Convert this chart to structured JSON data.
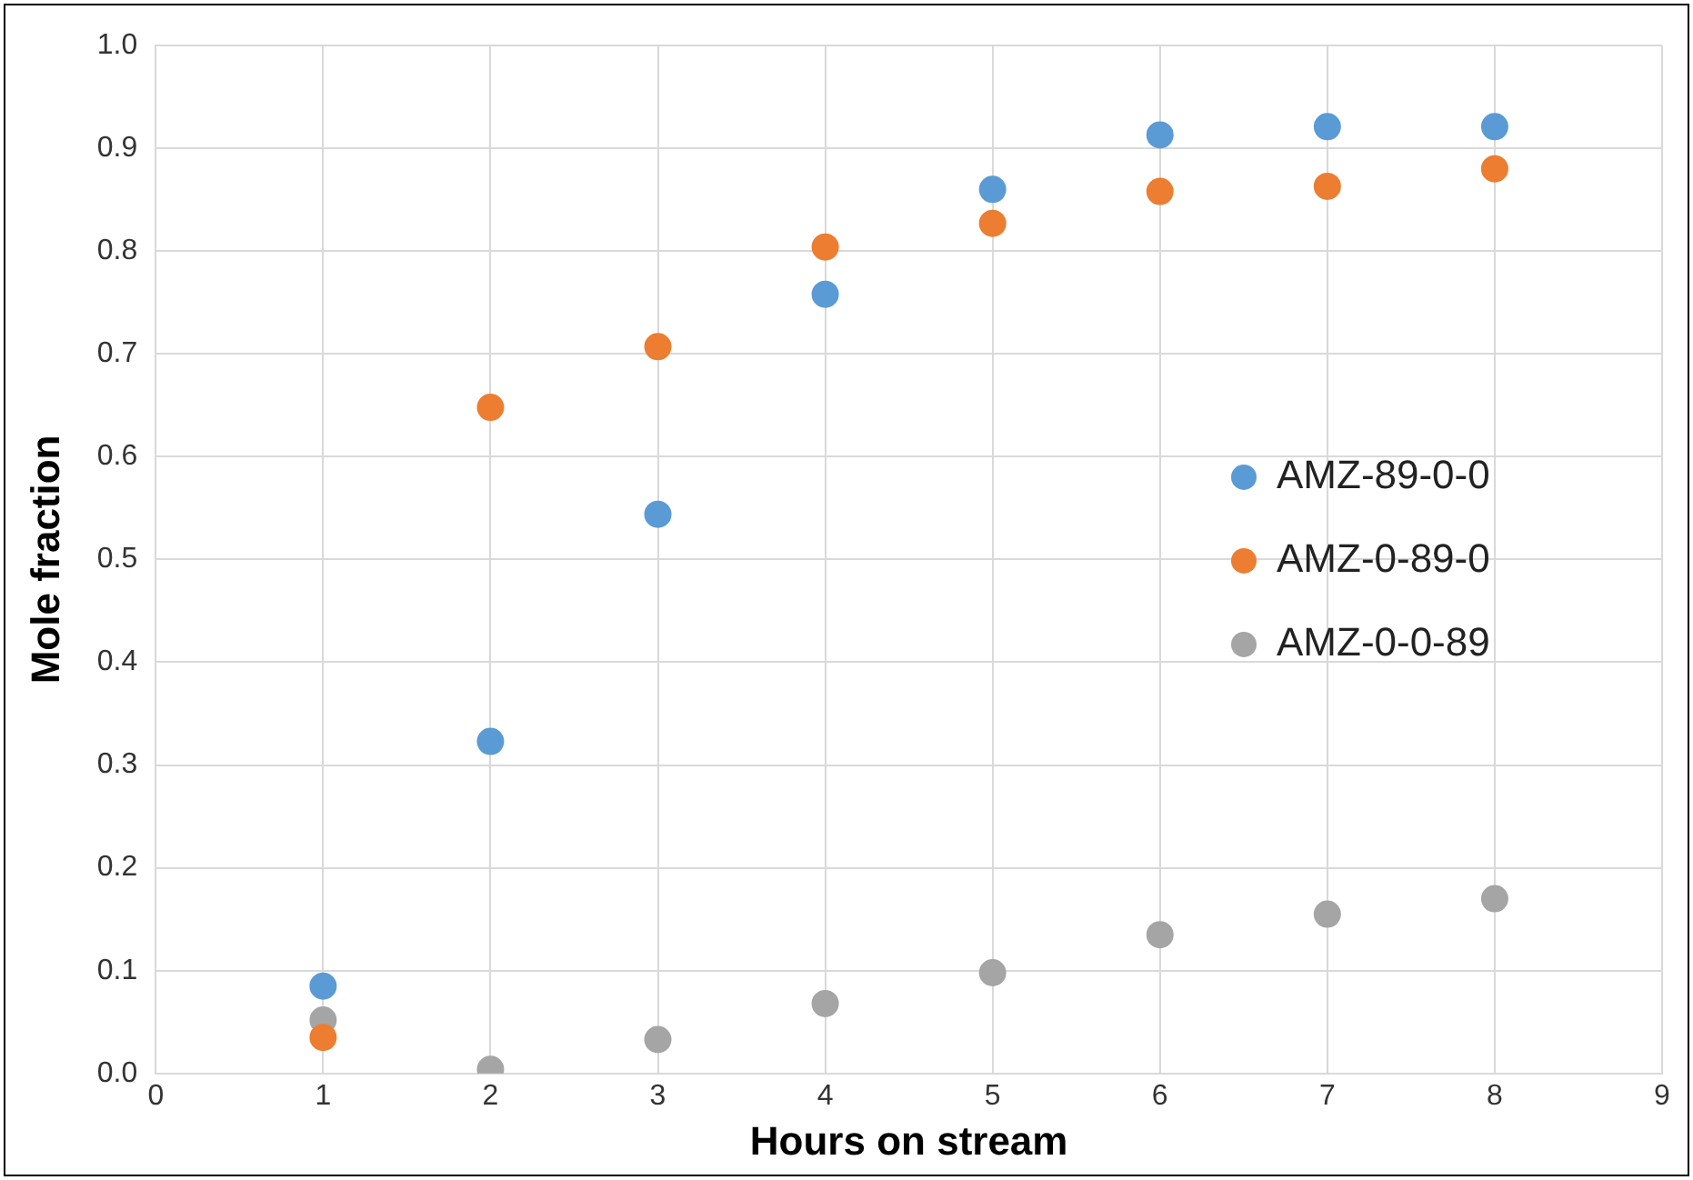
{
  "chart_data": {
    "type": "scatter",
    "xlabel": "Hours on stream",
    "ylabel": "Mole fraction",
    "x": [
      1,
      2,
      3,
      4,
      5,
      6,
      7,
      8
    ],
    "series": [
      {
        "name": "AMZ-89-0-0",
        "color": "#5b9bd5",
        "values": [
          0.085,
          0.323,
          0.544,
          0.758,
          0.86,
          0.913,
          0.921,
          0.921
        ]
      },
      {
        "name": "AMZ-0-89-0",
        "color": "#ed7d31",
        "values": [
          0.035,
          0.648,
          0.707,
          0.804,
          0.827,
          0.858,
          0.863,
          0.88
        ]
      },
      {
        "name": "AMZ-0-0-89",
        "color": "#a5a5a5",
        "values": [
          0.052,
          0.004,
          0.033,
          0.068,
          0.098,
          0.135,
          0.155,
          0.17
        ]
      }
    ],
    "xlim": [
      0,
      9
    ],
    "xticks": [
      0,
      1,
      2,
      3,
      4,
      5,
      6,
      7,
      8,
      9
    ],
    "ylim": [
      0,
      1
    ],
    "yticks": [
      {
        "value": 0,
        "label": "0.0"
      },
      {
        "value": 0.1,
        "label": "0.1"
      },
      {
        "value": 0.2,
        "label": "0.2"
      },
      {
        "value": 0.3,
        "label": "0.3"
      },
      {
        "value": 0.4,
        "label": "0.4"
      },
      {
        "value": 0.5,
        "label": "0.5"
      },
      {
        "value": 0.6,
        "label": "0.6"
      },
      {
        "value": 0.7,
        "label": "0.7"
      },
      {
        "value": 0.8,
        "label": "0.8"
      },
      {
        "value": 0.9,
        "label": "0.9"
      },
      {
        "value": 1,
        "label": "1.0"
      }
    ],
    "grid": true,
    "legend": "right",
    "marker": "circle"
  }
}
